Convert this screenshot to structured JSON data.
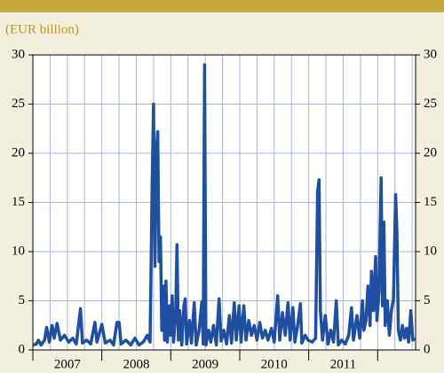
{
  "chart_data": {
    "type": "line",
    "subtitle": "(EUR billion)",
    "x": [
      2007.0,
      2007.05,
      2007.08,
      2007.12,
      2007.17,
      2007.2,
      2007.24,
      2007.28,
      2007.31,
      2007.35,
      2007.4,
      2007.46,
      2007.52,
      2007.58,
      2007.63,
      2007.69,
      2007.72,
      2007.78,
      2007.84,
      2007.9,
      2007.93,
      2008.0,
      2008.05,
      2008.12,
      2008.17,
      2008.22,
      2008.25,
      2008.28,
      2008.35,
      2008.42,
      2008.48,
      2008.54,
      2008.6,
      2008.66,
      2008.7,
      2008.73,
      2008.75,
      2008.77,
      2008.79,
      2008.81,
      2008.83,
      2008.85,
      2008.87,
      2008.89,
      2008.91,
      2008.93,
      2008.95,
      2008.98,
      2009.0,
      2009.02,
      2009.04,
      2009.07,
      2009.09,
      2009.11,
      2009.13,
      2009.16,
      2009.19,
      2009.21,
      2009.23,
      2009.27,
      2009.3,
      2009.34,
      2009.37,
      2009.41,
      2009.45,
      2009.47,
      2009.49,
      2009.51,
      2009.55,
      2009.58,
      2009.62,
      2009.66,
      2009.7,
      2009.73,
      2009.77,
      2009.81,
      2009.85,
      2009.88,
      2009.92,
      2009.95,
      2009.99,
      2010.02,
      2010.06,
      2010.09,
      2010.13,
      2010.17,
      2010.21,
      2010.25,
      2010.29,
      2010.33,
      2010.37,
      2010.41,
      2010.46,
      2010.5,
      2010.55,
      2010.58,
      2010.62,
      2010.66,
      2010.7,
      2010.73,
      2010.77,
      2010.8,
      2010.84,
      2010.88,
      2010.9,
      2010.95,
      2010.99,
      2011.05,
      2011.1,
      2011.13,
      2011.15,
      2011.17,
      2011.2,
      2011.24,
      2011.28,
      2011.32,
      2011.36,
      2011.4,
      2011.43,
      2011.48,
      2011.53,
      2011.58,
      2011.62,
      2011.65,
      2011.7,
      2011.74,
      2011.78,
      2011.8,
      2011.83,
      2011.86,
      2011.89,
      2011.91,
      2011.94,
      2011.97,
      2011.99,
      2012.02,
      2012.05,
      2012.07,
      2012.09,
      2012.11,
      2012.14,
      2012.17,
      2012.2,
      2012.23,
      2012.26,
      2012.28,
      2012.3,
      2012.33,
      2012.36,
      2012.39,
      2012.42,
      2012.45,
      2012.48,
      2012.51,
      2012.54
    ],
    "series": [
      {
        "color": "#1f4fa0",
        "values": [
          0.5,
          0.6,
          1.0,
          0.5,
          1.0,
          2.3,
          0.8,
          2.5,
          1.2,
          2.7,
          1.0,
          1.5,
          0.8,
          1.2,
          0.6,
          4.2,
          0.7,
          1.0,
          0.6,
          2.8,
          0.8,
          2.6,
          0.7,
          1.0,
          0.5,
          2.8,
          2.8,
          0.6,
          1.0,
          0.5,
          1.2,
          0.5,
          0.8,
          1.5,
          0.8,
          16.5,
          25.0,
          8.5,
          20.0,
          22.2,
          9.0,
          11.5,
          2.0,
          6.5,
          1.0,
          7.0,
          0.8,
          4.5,
          1.5,
          5.5,
          0.8,
          3.5,
          10.7,
          1.0,
          4.0,
          0.5,
          4.5,
          5.2,
          0.6,
          3.0,
          0.7,
          4.8,
          0.5,
          2.0,
          4.9,
          0.6,
          29.0,
          0.5,
          2.0,
          0.8,
          2.5,
          0.5,
          5.2,
          0.9,
          2.0,
          0.6,
          3.5,
          0.7,
          4.8,
          1.0,
          4.5,
          0.8,
          4.5,
          1.0,
          3.0,
          1.5,
          2.5,
          1.0,
          2.8,
          1.2,
          2.0,
          1.0,
          2.2,
          0.8,
          5.5,
          1.0,
          3.8,
          1.5,
          4.8,
          1.0,
          4.3,
          0.8,
          2.5,
          4.7,
          0.7,
          1.5,
          1.0,
          0.8,
          1.2,
          16.2,
          17.3,
          4.0,
          1.0,
          3.5,
          0.6,
          2.0,
          0.8,
          5.0,
          0.5,
          1.0,
          0.6,
          1.5,
          4.3,
          1.0,
          3.5,
          1.2,
          5.0,
          2.0,
          3.0,
          6.5,
          2.5,
          8.0,
          4.0,
          9.5,
          3.0,
          6.0,
          17.5,
          4.5,
          13.0,
          2.5,
          5.0,
          1.5,
          4.0,
          5.2,
          15.8,
          12.0,
          2.0,
          1.0,
          2.5,
          1.2,
          2.2,
          0.8,
          4.0,
          1.0,
          1.2
        ]
      }
    ],
    "xlim": [
      2007,
      2012.55
    ],
    "xticks": [
      {
        "value": 2007.5,
        "label": "2007"
      },
      {
        "value": 2008.5,
        "label": "2008"
      },
      {
        "value": 2009.5,
        "label": "2009"
      },
      {
        "value": 2010.5,
        "label": "2010"
      },
      {
        "value": 2011.5,
        "label": "2011"
      }
    ],
    "ylim": [
      0,
      30
    ],
    "yticks": [
      0,
      5,
      10,
      15,
      20,
      25,
      30
    ],
    "grid": true
  }
}
